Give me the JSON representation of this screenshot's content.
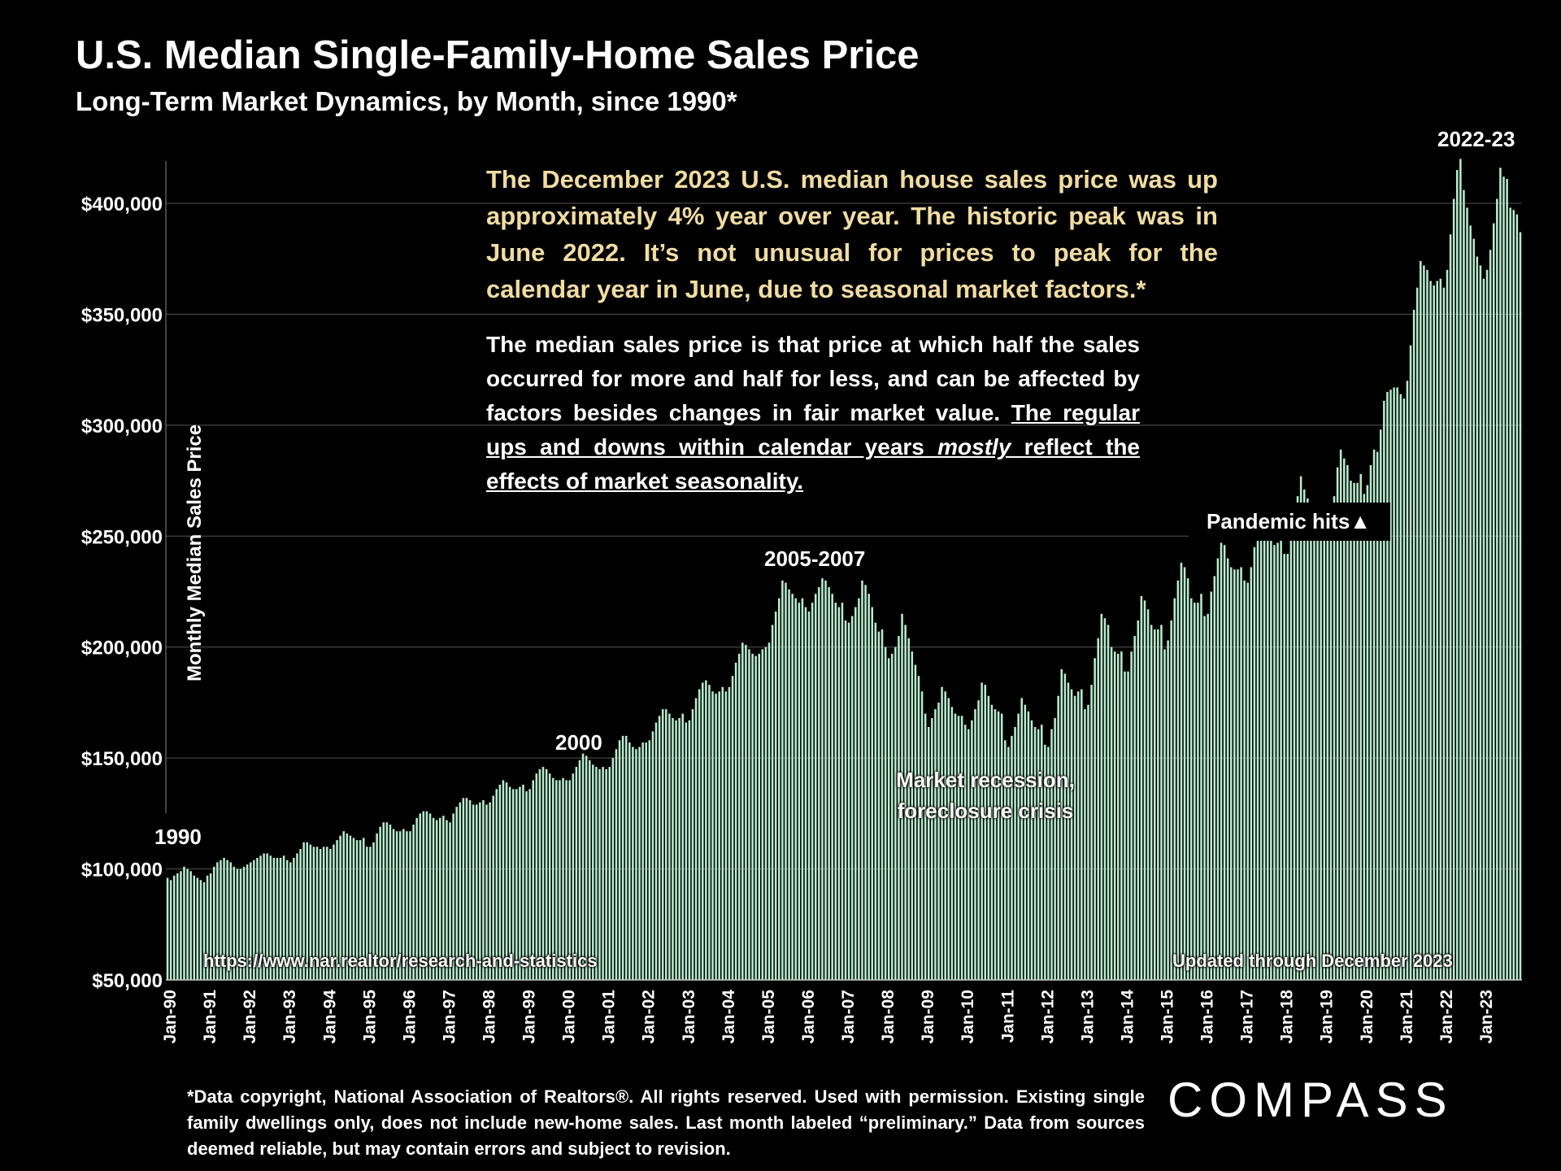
{
  "title": "U.S. Median Single-Family-Home Sales Price",
  "subtitle": "Long-Term Market Dynamics, by Month, since 1990*",
  "ylabel": "Monthly Median Sales Price",
  "callout1": "The December 2023 U.S. median house sales price was up approximately 4% year over year. The historic peak was in June 2022. It’s not unusual for prices to peak for the calendar year in June, due to seasonal market factors.*",
  "callout2": {
    "part1": "The median sales price is that price at which half the sales occurred for more and half for less, and can be affected by factors besides changes in fair market value.",
    "part2": "The regular ups and downs within calendar years",
    "part3_em": "mostly",
    "part4": "reflect the effects of market seasonality."
  },
  "annotations": {
    "peak": "2022-23",
    "bubble": "2005-2007",
    "y2000": "2000",
    "y1990": "1990",
    "recession_line1": "Market recession,",
    "recession_line2": "foreclosure crisis",
    "pandemic": "Pandemic hits▲"
  },
  "source_url": "https://www.nar.realtor/research-and-statistics",
  "updated": "Updated through December 2023",
  "footnote": "*Data copyright, National Association of Realtors®. All rights reserved. Used with permission. Existing single family dwellings only, does  not include new-home sales. Last month labeled “preliminary.” Data from sources deemed reliable, but may contain errors and subject to revision.",
  "brand": "COMPASS",
  "colors": {
    "bar": "#b8ecce",
    "background": "#000000",
    "callout": "#f1dca0",
    "grid": "#555555"
  },
  "chart_data": {
    "type": "bar",
    "ylim": [
      50000,
      420000
    ],
    "yticks": [
      50000,
      100000,
      150000,
      200000,
      250000,
      300000,
      350000,
      400000
    ],
    "ytick_labels": [
      "$50,000",
      "$100,000",
      "$150,000",
      "$200,000",
      "$250,000",
      "$300,000",
      "$350,000",
      "$400,000"
    ],
    "xtick_labels": [
      "Jan-90",
      "Jan-91",
      "Jan-92",
      "Jan-93",
      "Jan-94",
      "Jan-95",
      "Jan-96",
      "Jan-97",
      "Jan-98",
      "Jan-99",
      "Jan-00",
      "Jan-01",
      "Jan-02",
      "Jan-03",
      "Jan-04",
      "Jan-05",
      "Jan-06",
      "Jan-07",
      "Jan-08",
      "Jan-09",
      "Jan-10",
      "Jan-11",
      "Jan-12",
      "Jan-13",
      "Jan-14",
      "Jan-15",
      "Jan-16",
      "Jan-17",
      "Jan-18",
      "Jan-19",
      "Jan-20",
      "Jan-21",
      "Jan-22",
      "Jan-23"
    ],
    "grid": true,
    "x_start": "Jan-90",
    "series": [
      {
        "values": [
          96000,
          95000,
          97000,
          98000,
          99000,
          101000,
          100000,
          99000,
          97000,
          96000,
          95000,
          94000,
          97000,
          98000,
          101000,
          103000,
          104000,
          105000,
          104000,
          103000,
          101000,
          100000,
          100000,
          101000,
          102000,
          103000,
          104000,
          105000,
          106000,
          107000,
          107000,
          106000,
          105000,
          105000,
          105000,
          106000,
          104000,
          103000,
          105000,
          107000,
          109000,
          112000,
          112000,
          111000,
          110000,
          110000,
          109000,
          110000,
          110000,
          109000,
          111000,
          113000,
          115000,
          117000,
          116000,
          115000,
          114000,
          113000,
          113000,
          114000,
          110000,
          110000,
          112000,
          116000,
          119000,
          121000,
          121000,
          120000,
          118000,
          117000,
          117000,
          118000,
          117000,
          117000,
          120000,
          123000,
          125000,
          126000,
          126000,
          125000,
          123000,
          122000,
          123000,
          124000,
          122000,
          121000,
          125000,
          128000,
          130000,
          132000,
          132000,
          131000,
          129000,
          129000,
          130000,
          131000,
          129000,
          130000,
          133000,
          136000,
          138000,
          140000,
          139000,
          137000,
          136000,
          136000,
          137000,
          138000,
          135000,
          136000,
          140000,
          143000,
          145000,
          146000,
          145000,
          143000,
          141000,
          140000,
          140000,
          141000,
          140000,
          140000,
          143000,
          146000,
          149000,
          152000,
          151000,
          149000,
          147000,
          146000,
          145000,
          146000,
          145000,
          146000,
          150000,
          154000,
          158000,
          160000,
          160000,
          157000,
          155000,
          154000,
          155000,
          157000,
          157000,
          158000,
          162000,
          166000,
          169000,
          172000,
          172000,
          170000,
          168000,
          167000,
          168000,
          170000,
          166000,
          167000,
          172000,
          177000,
          181000,
          184000,
          185000,
          183000,
          180000,
          179000,
          180000,
          182000,
          180000,
          182000,
          187000,
          193000,
          197000,
          202000,
          201000,
          199000,
          197000,
          196000,
          197000,
          199000,
          200000,
          202000,
          210000,
          216000,
          222000,
          230000,
          229000,
          226000,
          224000,
          222000,
          220000,
          222000,
          218000,
          216000,
          220000,
          224000,
          227000,
          231000,
          230000,
          227000,
          224000,
          220000,
          218000,
          220000,
          212000,
          211000,
          214000,
          218000,
          222000,
          230000,
          228000,
          224000,
          218000,
          211000,
          207000,
          208000,
          200000,
          195000,
          197000,
          200000,
          205000,
          215000,
          210000,
          204000,
          198000,
          192000,
          187000,
          180000,
          170000,
          164000,
          168000,
          172000,
          175000,
          182000,
          180000,
          177000,
          173000,
          170000,
          169000,
          169000,
          165000,
          163000,
          167000,
          172000,
          176000,
          184000,
          183000,
          178000,
          174000,
          172000,
          171000,
          170000,
          158000,
          155000,
          160000,
          164000,
          170000,
          177000,
          174000,
          171000,
          167000,
          164000,
          163000,
          165000,
          156000,
          155000,
          163000,
          168000,
          178000,
          190000,
          188000,
          184000,
          181000,
          178000,
          180000,
          181000,
          172000,
          174000,
          183000,
          195000,
          204000,
          215000,
          213000,
          210000,
          200000,
          198000,
          197000,
          198000,
          189000,
          189000,
          198000,
          205000,
          212000,
          223000,
          221000,
          217000,
          210000,
          208000,
          208000,
          210000,
          199000,
          203000,
          212000,
          222000,
          230000,
          238000,
          236000,
          231000,
          222000,
          220000,
          220000,
          224000,
          214000,
          215000,
          225000,
          232000,
          240000,
          247000,
          246000,
          240000,
          236000,
          235000,
          235000,
          236000,
          230000,
          229000,
          236000,
          245000,
          250000,
          256000,
          256000,
          253000,
          248000,
          246000,
          247000,
          250000,
          242000,
          242000,
          253000,
          260000,
          268000,
          277000,
          271000,
          267000,
          258000,
          257000,
          256000,
          260000,
          248000,
          252000,
          260000,
          268000,
          281000,
          289000,
          285000,
          282000,
          275000,
          274000,
          274000,
          278000,
          269000,
          273000,
          282000,
          289000,
          288000,
          298000,
          311000,
          315000,
          316000,
          317000,
          317000,
          314000,
          312000,
          320000,
          336000,
          352000,
          362000,
          374000,
          372000,
          370000,
          365000,
          363000,
          365000,
          366000,
          362000,
          370000,
          386000,
          402000,
          415000,
          420000,
          406000,
          398000,
          390000,
          384000,
          376000,
          372000,
          366000,
          370000,
          379000,
          391000,
          402000,
          416000,
          412000,
          411000,
          398000,
          397000,
          395000,
          387000
        ]
      }
    ]
  }
}
